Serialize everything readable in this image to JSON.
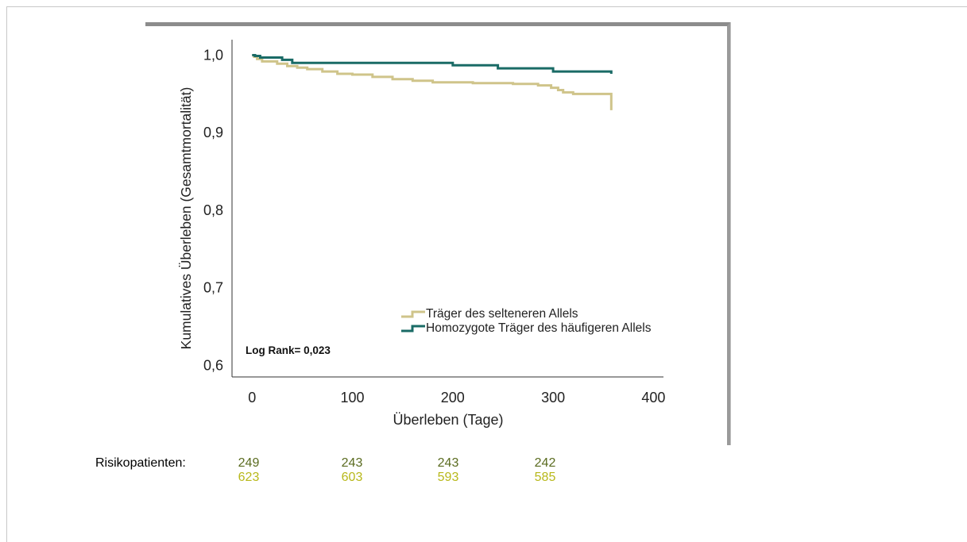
{
  "colors": {
    "series_rare": "#cfc48a",
    "series_homozygous": "#1a6b66",
    "risk_row_1": "#5a6b1f",
    "risk_row_2": "#b8b81a"
  },
  "chart_data": {
    "type": "line",
    "step": true,
    "ylabel": "Kumulatives Überleben (Gesamtmortalität)",
    "xlabel": "Überleben (Tage)",
    "xlim": [
      -20,
      410
    ],
    "ylim": [
      0.585,
      1.02
    ],
    "xticks": [
      0,
      100,
      200,
      300,
      400
    ],
    "xtick_labels": [
      "0",
      "100",
      "200",
      "300",
      "400"
    ],
    "yticks": [
      0.6,
      0.7,
      0.8,
      0.9,
      1.0
    ],
    "ytick_labels": [
      "0,6",
      "0,7",
      "0,8",
      "0,9",
      "1,0"
    ],
    "annotation": "Log Rank= 0,023",
    "legend_placement": "lower-right",
    "series": [
      {
        "name": "Träger des selteneren Allels",
        "color": "#cfc48a",
        "x": [
          0,
          2,
          5,
          10,
          25,
          35,
          45,
          55,
          70,
          85,
          100,
          120,
          140,
          160,
          180,
          220,
          260,
          285,
          298,
          305,
          310,
          320,
          358,
          358
        ],
        "y": [
          1.0,
          0.998,
          0.995,
          0.992,
          0.989,
          0.986,
          0.984,
          0.982,
          0.979,
          0.976,
          0.975,
          0.972,
          0.969,
          0.967,
          0.965,
          0.964,
          0.963,
          0.961,
          0.958,
          0.955,
          0.952,
          0.95,
          0.95,
          0.929
        ]
      },
      {
        "name": "Homozygote Träger des häufigeren Allels",
        "color": "#1a6b66",
        "x": [
          0,
          3,
          8,
          30,
          40,
          200,
          245,
          300,
          358
        ],
        "y": [
          1.0,
          0.999,
          0.997,
          0.994,
          0.99,
          0.987,
          0.983,
          0.979,
          0.976
        ]
      }
    ]
  },
  "risk": {
    "label": "Risikopatienten:",
    "row_homozygous": [
      "249",
      "243",
      "243",
      "242"
    ],
    "row_rare": [
      "623",
      "603",
      "593",
      "585"
    ]
  }
}
